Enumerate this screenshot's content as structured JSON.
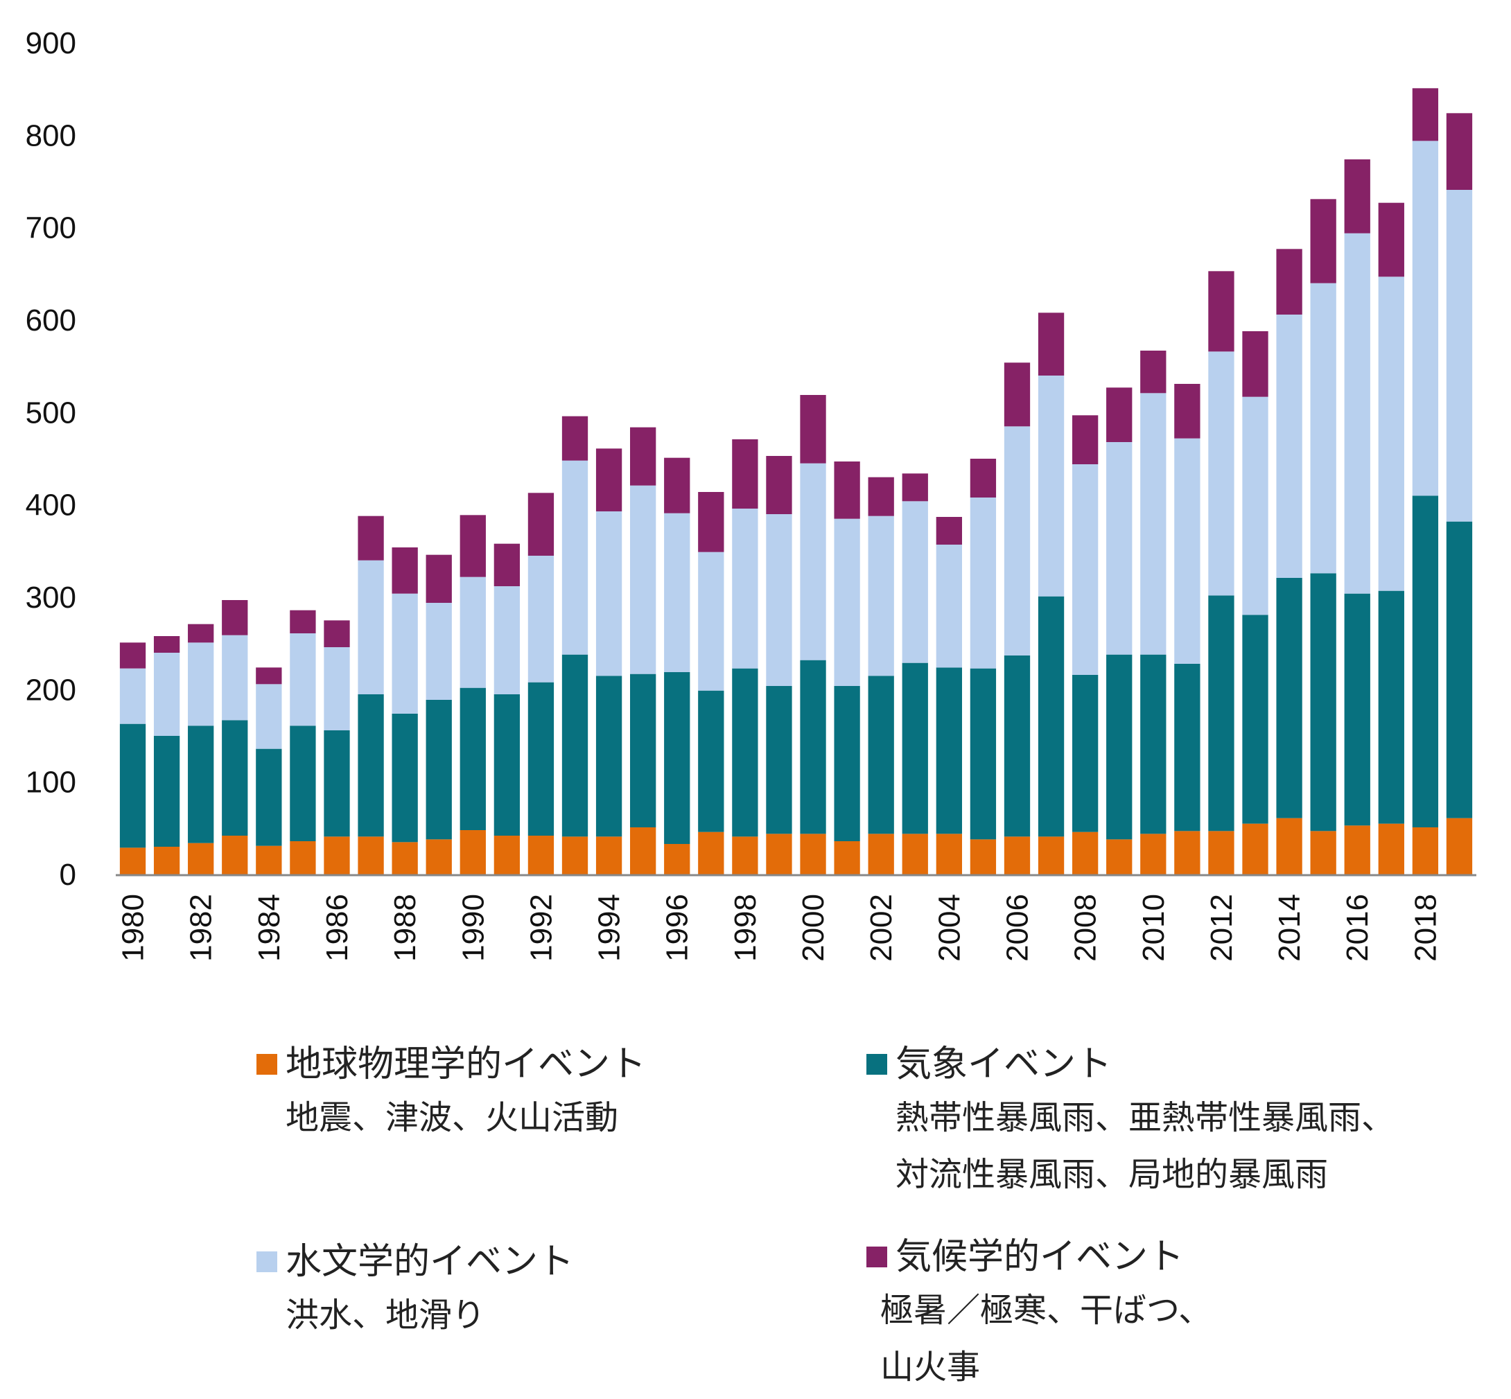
{
  "chart_data": {
    "type": "bar",
    "stacked": true,
    "categories": [
      "1980",
      "1981",
      "1982",
      "1983",
      "1984",
      "1985",
      "1986",
      "1987",
      "1988",
      "1989",
      "1990",
      "1991",
      "1992",
      "1993",
      "1994",
      "1995",
      "1996",
      "1997",
      "1998",
      "1999",
      "2000",
      "2001",
      "2002",
      "2003",
      "2004",
      "2005",
      "2006",
      "2007",
      "2008",
      "2009",
      "2010",
      "2011",
      "2012",
      "2013",
      "2014",
      "2015",
      "2016",
      "2017",
      "2018",
      "2019"
    ],
    "x_tick_labels": [
      "1980",
      "1982",
      "1984",
      "1986",
      "1988",
      "1990",
      "1992",
      "1994",
      "1996",
      "1998",
      "2000",
      "2002",
      "2004",
      "2006",
      "2008",
      "2010",
      "2012",
      "2014",
      "2016",
      "2018"
    ],
    "ylim": [
      0,
      900
    ],
    "yticks": [
      0,
      100,
      200,
      300,
      400,
      500,
      600,
      700,
      800,
      900
    ],
    "grid": false,
    "legend_position": "bottom",
    "series": [
      {
        "name": "地球物理学的イベント",
        "description": "地震、津波、火山活動",
        "color": "#e36c09",
        "values": [
          29,
          30,
          34,
          42,
          31,
          36,
          41,
          41,
          35,
          38,
          48,
          42,
          42,
          41,
          41,
          51,
          33,
          46,
          41,
          44,
          44,
          36,
          44,
          44,
          44,
          38,
          41,
          41,
          46,
          38,
          44,
          47,
          47,
          55,
          61,
          47,
          53,
          55,
          51,
          61
        ]
      },
      {
        "name": "気象イベント",
        "description": "熱帯性暴風雨、亜熱帯性暴風雨、\n対流性暴風雨、局地的暴風雨",
        "color": "#08717f",
        "values": [
          134,
          120,
          127,
          125,
          105,
          125,
          115,
          154,
          139,
          151,
          154,
          153,
          166,
          197,
          174,
          166,
          186,
          153,
          182,
          160,
          188,
          168,
          171,
          185,
          180,
          185,
          196,
          260,
          170,
          200,
          194,
          181,
          255,
          226,
          260,
          279,
          251,
          252,
          359,
          321
        ]
      },
      {
        "name": "水文学的イベント",
        "description": "洪水、地滑り",
        "color": "#b8d0ee",
        "values": [
          60,
          90,
          90,
          92,
          70,
          100,
          90,
          145,
          130,
          105,
          120,
          117,
          137,
          210,
          178,
          204,
          172,
          150,
          173,
          186,
          213,
          181,
          173,
          175,
          133,
          185,
          248,
          239,
          228,
          230,
          283,
          244,
          264,
          236,
          285,
          314,
          390,
          340,
          384,
          359
        ]
      },
      {
        "name": "気候学的イベント",
        "description": "極暑／極寒、干ばつ、\n山火事",
        "color": "#862266",
        "values": [
          28,
          18,
          20,
          38,
          18,
          25,
          29,
          48,
          50,
          52,
          67,
          46,
          68,
          48,
          68,
          63,
          60,
          65,
          75,
          63,
          74,
          62,
          42,
          30,
          30,
          42,
          69,
          68,
          53,
          59,
          46,
          59,
          87,
          71,
          71,
          91,
          80,
          80,
          57,
          83
        ]
      }
    ]
  }
}
